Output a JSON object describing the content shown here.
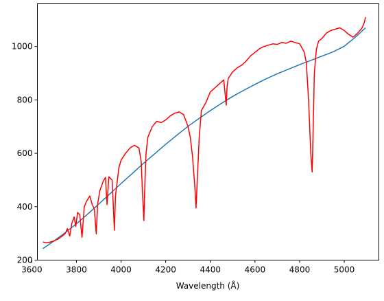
{
  "chart_data": {
    "type": "line",
    "title": "",
    "xlabel": "Wavelength ($\\AA$)",
    "xlabel_display": "Wavelength (Å)",
    "ylabel": "",
    "xlim": [
      3625,
      5155
    ],
    "ylim": [
      200,
      1160
    ],
    "grid": false,
    "legend": "none",
    "xticks": [
      3600,
      3800,
      4000,
      4200,
      4400,
      4600,
      4800,
      5000
    ],
    "yticks": [
      200,
      400,
      600,
      800,
      1000
    ],
    "xtick_labels": [
      "3600",
      "3800",
      "4000",
      "4200",
      "4400",
      "4600",
      "4800",
      "5000"
    ],
    "ytick_labels": [
      "200",
      "400",
      "600",
      "800",
      "1000"
    ],
    "series": [
      {
        "color": "#1f77b4",
        "x": [
          3650,
          3700,
          3750,
          3800,
          3850,
          3900,
          3950,
          4000,
          4050,
          4100,
          4150,
          4200,
          4250,
          4300,
          4350,
          4400,
          4450,
          4500,
          4550,
          4600,
          4650,
          4700,
          4750,
          4800,
          4850,
          4900,
          4950,
          5000,
          5050,
          5095
        ],
        "y": [
          243,
          272,
          303,
          336,
          372,
          410,
          448,
          487,
          524,
          562,
          598,
          634,
          668,
          701,
          731,
          760,
          787,
          813,
          836,
          858,
          879,
          898,
          915,
          932,
          948,
          964,
          980,
          1001,
          1035,
          1070
        ]
      },
      {
        "color": "#ff0000",
        "x": [
          3650,
          3665,
          3680,
          3700,
          3720,
          3740,
          3750,
          3760,
          3770,
          3780,
          3790,
          3797,
          3805,
          3815,
          3825,
          3835,
          3845,
          3860,
          3870,
          3880,
          3889,
          3895,
          3905,
          3920,
          3930,
          3937,
          3945,
          3960,
          3970,
          3975,
          3990,
          4000,
          4020,
          4040,
          4060,
          4080,
          4090,
          4095,
          4102,
          4106,
          4112,
          4120,
          4140,
          4160,
          4180,
          4200,
          4220,
          4240,
          4260,
          4280,
          4300,
          4310,
          4320,
          4330,
          4336,
          4340,
          4350,
          4360,
          4380,
          4400,
          4420,
          4440,
          4460,
          4471,
          4475,
          4480,
          4500,
          4520,
          4540,
          4560,
          4580,
          4600,
          4620,
          4640,
          4660,
          4680,
          4700,
          4720,
          4740,
          4760,
          4780,
          4800,
          4820,
          4830,
          4840,
          4850,
          4856,
          4861,
          4866,
          4875,
          4885,
          4900,
          4920,
          4940,
          4960,
          4980,
          5000,
          5020,
          5040,
          5060,
          5080,
          5090,
          5095
        ],
        "y": [
          268,
          265,
          267,
          272,
          280,
          292,
          300,
          318,
          290,
          340,
          362,
          326,
          378,
          370,
          285,
          400,
          420,
          440,
          410,
          392,
          298,
          410,
          460,
          495,
          510,
          408,
          512,
          500,
          312,
          440,
          545,
          575,
          600,
          620,
          630,
          620,
          570,
          470,
          348,
          470,
          600,
          660,
          700,
          720,
          715,
          725,
          740,
          750,
          755,
          745,
          700,
          660,
          590,
          480,
          395,
          470,
          660,
          760,
          790,
          830,
          845,
          860,
          875,
          780,
          850,
          880,
          905,
          920,
          930,
          945,
          965,
          978,
          992,
          1000,
          1005,
          1010,
          1008,
          1015,
          1012,
          1020,
          1015,
          1010,
          980,
          940,
          800,
          600,
          530,
          700,
          900,
          990,
          1020,
          1030,
          1050,
          1060,
          1065,
          1070,
          1060,
          1045,
          1035,
          1050,
          1070,
          1090,
          1110
        ]
      }
    ]
  }
}
